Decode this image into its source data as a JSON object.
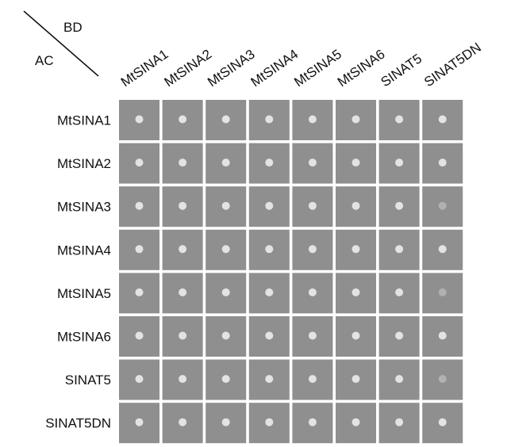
{
  "corner": {
    "top": "BD",
    "bottom": "AC"
  },
  "columns": [
    "MtSINA1",
    "MtSINA2",
    "MtSINA3",
    "MtSINA4",
    "MtSINA5",
    "MtSINA6",
    "SINAT5",
    "SINAT5DN"
  ],
  "rows": [
    "MtSINA1",
    "MtSINA2",
    "MtSINA3",
    "MtSINA4",
    "MtSINA5",
    "MtSINA6",
    "SINAT5",
    "SINAT5DN"
  ]
}
